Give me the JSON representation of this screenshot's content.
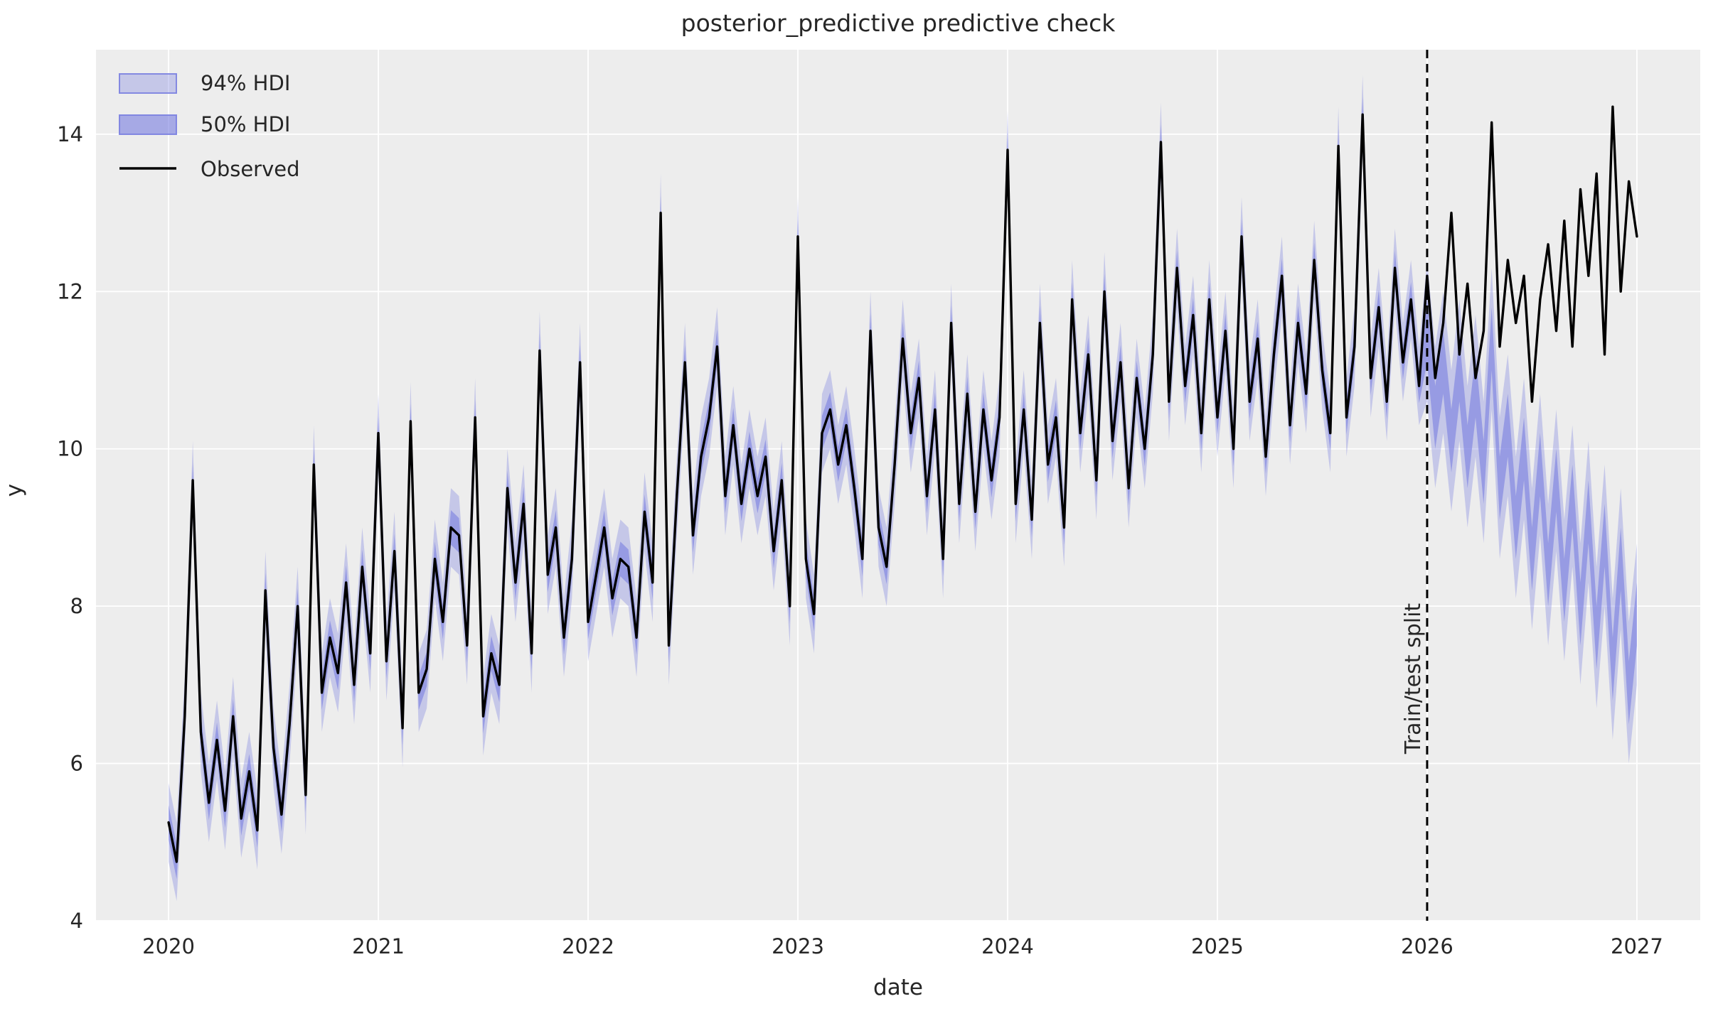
{
  "figure": {
    "title": "posterior_predictive predictive check"
  },
  "chart_data": {
    "type": "line",
    "title": "posterior_predictive predictive check",
    "xlabel": "date",
    "ylabel": "y",
    "xlim": [
      2019.654,
      2027.302
    ],
    "ylim": [
      4,
      15.074
    ],
    "xticks": [
      2020,
      2021,
      2022,
      2023,
      2024,
      2025,
      2026,
      2027
    ],
    "yticks": [
      4,
      6,
      8,
      10,
      12,
      14
    ],
    "grid": true,
    "legend_position": "upper left",
    "legend": [
      "94% HDI",
      "50% HDI",
      "Observed"
    ],
    "annotation": {
      "text": "Train/test split",
      "x": 2026.0,
      "rotation": -90,
      "line_style": "dashed"
    },
    "split_x": 2026.0,
    "x_start": 2020.0,
    "x_step_years": 0.0384615,
    "observed": [
      5.25,
      4.75,
      6.6,
      9.6,
      6.4,
      5.5,
      6.3,
      5.4,
      6.6,
      5.3,
      5.9,
      5.15,
      8.2,
      6.2,
      5.35,
      6.5,
      8.0,
      5.6,
      9.8,
      6.9,
      7.6,
      7.15,
      8.3,
      7.0,
      8.5,
      7.4,
      10.2,
      7.3,
      8.7,
      6.45,
      10.35,
      6.9,
      7.2,
      8.6,
      7.8,
      9.0,
      8.9,
      7.5,
      10.4,
      6.6,
      7.4,
      7.0,
      9.5,
      8.3,
      9.3,
      7.4,
      11.25,
      8.4,
      9.0,
      7.6,
      8.6,
      11.1,
      7.8,
      8.4,
      9.0,
      8.1,
      8.6,
      8.5,
      7.6,
      9.2,
      8.3,
      13.0,
      7.5,
      9.4,
      11.1,
      8.9,
      9.9,
      10.4,
      11.3,
      9.4,
      10.3,
      9.3,
      10.0,
      9.4,
      9.9,
      8.7,
      9.6,
      8.0,
      12.7,
      8.6,
      7.9,
      10.2,
      10.5,
      9.8,
      10.3,
      9.5,
      8.6,
      11.5,
      9.0,
      8.5,
      9.8,
      11.4,
      10.2,
      10.9,
      9.4,
      10.5,
      8.6,
      11.6,
      9.3,
      10.7,
      9.2,
      10.5,
      9.6,
      10.4,
      13.8,
      9.3,
      10.5,
      9.1,
      11.6,
      9.8,
      10.4,
      9.0,
      11.9,
      10.2,
      11.2,
      9.6,
      12.0,
      10.1,
      11.1,
      9.5,
      10.9,
      10.0,
      11.2,
      13.9,
      10.6,
      12.3,
      10.8,
      11.7,
      10.2,
      11.9,
      10.4,
      11.5,
      10.0,
      12.7,
      10.6,
      11.4,
      9.9,
      11.2,
      12.2,
      10.3,
      11.6,
      10.7,
      12.4,
      11.0,
      10.2,
      13.85,
      10.4,
      11.3,
      14.25,
      10.9,
      11.8,
      10.6,
      12.3,
      11.1,
      11.9,
      10.8,
      12.2,
      10.9,
      11.6,
      13.0,
      11.2,
      12.1,
      10.9,
      11.5,
      14.15,
      11.3,
      12.4,
      11.6,
      12.2,
      10.6,
      11.9,
      12.6,
      11.5,
      12.9,
      11.3,
      13.3,
      12.2,
      13.5,
      11.2,
      14.35,
      12.0,
      13.4,
      12.7
    ],
    "hdi_center_test_start_index": 156,
    "hdi_center_test": [
      11.5,
      10.4,
      11.1,
      10.1,
      11.0,
      9.9,
      10.8,
      9.7,
      11.4,
      9.5,
      10.3,
      9.0,
      10.0,
      8.6,
      9.8,
      8.4,
      9.6,
      8.2,
      9.4,
      7.9,
      9.2,
      7.6,
      8.9,
      7.2,
      8.6,
      6.9,
      7.9
    ],
    "hdi94_halfwidth_train": 0.5,
    "hdi94_halfwidth_test": 0.9,
    "hdi50_halfwidth_train": 0.22,
    "hdi50_halfwidth_test": 0.4,
    "colors": {
      "accent": "#7a80e0",
      "observed": "#000000",
      "split_line": "#000000",
      "plot_background": "#ededed",
      "grid": "#ffffff",
      "text": "#262626"
    },
    "opacities": {
      "band94": 0.35,
      "band50": 0.62
    }
  }
}
